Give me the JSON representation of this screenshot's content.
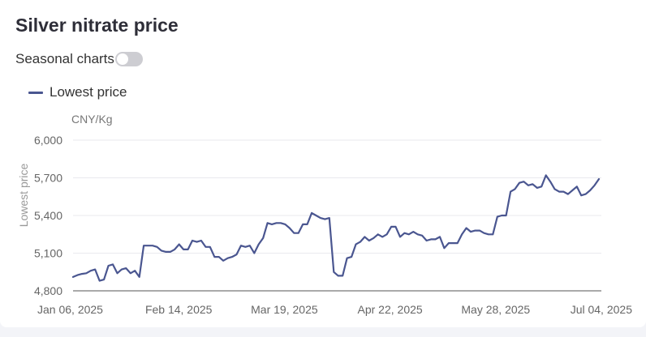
{
  "title": "Silver nitrate price",
  "seasonal_toggle": {
    "label": "Seasonal charts",
    "on": false
  },
  "colors": {
    "series": "#4a5690",
    "grid": "#e9e9ee",
    "axis": "#555555"
  },
  "chart_data": {
    "type": "line",
    "title": "Silver nitrate price",
    "unit": "CNY/Kg",
    "ylabel": "Lowest price",
    "xlabel": "",
    "ylim": [
      4800,
      6000
    ],
    "yticks": [
      4800,
      5100,
      5400,
      5700,
      6000
    ],
    "ytick_labels": [
      "4,800",
      "5,100",
      "5,400",
      "5,700",
      "6,000"
    ],
    "xtick_labels": [
      "Jan 06, 2025",
      "Feb 14, 2025",
      "Mar 19, 2025",
      "Apr 22, 2025",
      "May 28, 2025",
      "Jul 04, 2025"
    ],
    "x_start": "Jan 06, 2025",
    "x_end": "Jul 04, 2025",
    "grid": true,
    "legend": "top-left",
    "series": [
      {
        "name": "Lowest price",
        "color": "#4a5690",
        "values": [
          4910,
          4925,
          4935,
          4940,
          4960,
          4970,
          4880,
          4890,
          5000,
          5010,
          4940,
          4970,
          4980,
          4940,
          4960,
          4910,
          5160,
          5160,
          5160,
          5150,
          5120,
          5110,
          5110,
          5130,
          5170,
          5130,
          5130,
          5200,
          5190,
          5200,
          5150,
          5150,
          5070,
          5070,
          5040,
          5060,
          5070,
          5090,
          5160,
          5150,
          5160,
          5100,
          5170,
          5220,
          5340,
          5330,
          5340,
          5340,
          5330,
          5300,
          5260,
          5260,
          5330,
          5330,
          5420,
          5400,
          5380,
          5370,
          5380,
          4950,
          4920,
          4920,
          5060,
          5070,
          5170,
          5190,
          5230,
          5200,
          5220,
          5250,
          5230,
          5250,
          5310,
          5310,
          5230,
          5260,
          5250,
          5270,
          5250,
          5240,
          5200,
          5210,
          5210,
          5230,
          5140,
          5180,
          5180,
          5180,
          5250,
          5300,
          5270,
          5280,
          5280,
          5260,
          5250,
          5250,
          5390,
          5400,
          5400,
          5590,
          5610,
          5660,
          5670,
          5640,
          5650,
          5620,
          5630,
          5720,
          5670,
          5610,
          5590,
          5590,
          5570,
          5600,
          5630,
          5560,
          5570,
          5600,
          5640,
          5690
        ]
      }
    ]
  }
}
